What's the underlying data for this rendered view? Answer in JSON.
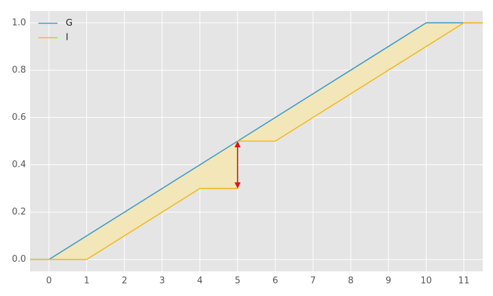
{
  "chart_data": {
    "type": "line",
    "x": [
      -0.5,
      0,
      1,
      4,
      5,
      5,
      6,
      10,
      11,
      11.5
    ],
    "series": [
      {
        "name": "G",
        "color": "#3a9bc8",
        "values": [
          0,
          0,
          0.1,
          0.4,
          0.5,
          0.5,
          0.6,
          1,
          1,
          1
        ]
      },
      {
        "name": "I",
        "color": "#f0b91a",
        "values": [
          0,
          0,
          0,
          0.3,
          0.3,
          0.5,
          0.5,
          0.9,
          1,
          1
        ]
      }
    ],
    "fill_between_color": "#f3e6b8",
    "arrow": {
      "x": 5,
      "y1": 0.3,
      "y2": 0.5,
      "color": "#e0141c"
    },
    "xlim": [
      -0.5,
      11.5
    ],
    "ylim": [
      -0.05,
      1.05
    ],
    "xticks": [
      0,
      1,
      2,
      3,
      4,
      5,
      6,
      7,
      8,
      9,
      10,
      11
    ],
    "yticks": [
      {
        "value": 0,
        "label": "0.0"
      },
      0.2,
      0.4,
      0.6,
      0.8,
      {
        "value": 1,
        "label": "1.0"
      }
    ],
    "grid": true,
    "legend": "upper left",
    "background": "#e5e5e5"
  }
}
